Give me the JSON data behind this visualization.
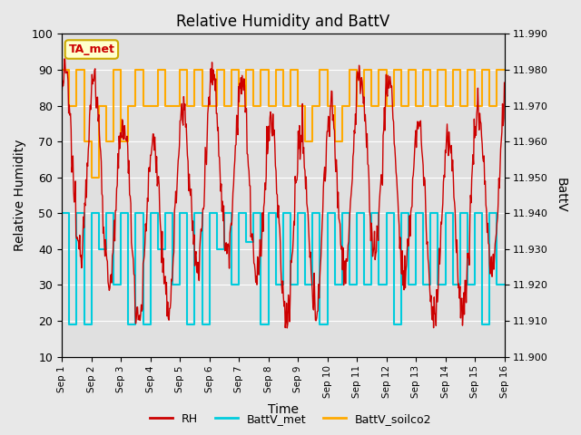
{
  "title": "Relative Humidity and BattV",
  "xlabel": "Time",
  "ylabel_left": "Relative Humidity",
  "ylabel_right": "BattV",
  "annotation_text": "TA_met",
  "annotation_color": "#cc0000",
  "annotation_bg": "#ffffcc",
  "annotation_border": "#ccaa00",
  "ylim_left": [
    10,
    100
  ],
  "ylim_right": [
    11.9,
    11.99
  ],
  "yticks_left": [
    10,
    20,
    30,
    40,
    50,
    60,
    70,
    80,
    90,
    100
  ],
  "yticks_right": [
    11.9,
    11.91,
    11.92,
    11.93,
    11.94,
    11.95,
    11.96,
    11.97,
    11.98,
    11.99
  ],
  "bg_color": "#e8e8e8",
  "plot_bg_color": "#e0e0e0",
  "grid_color": "#ffffff",
  "rh_color": "#cc0000",
  "battv_met_color": "#00ccdd",
  "battv_soilco2_color": "#ffaa00",
  "legend_rh_label": "RH",
  "legend_met_label": "BattV_met",
  "legend_soilco2_label": "BattV_soilco2",
  "rh_seed": 12345,
  "battv_met_levels": [
    50,
    19,
    50,
    19,
    50,
    40,
    50,
    30,
    50,
    19,
    50,
    19,
    50,
    40,
    50,
    30,
    50,
    19,
    50,
    19,
    50,
    40,
    50,
    30,
    50,
    42,
    50,
    19,
    50,
    30,
    50,
    30,
    50,
    30,
    50,
    19,
    50,
    30,
    50,
    30,
    50,
    30,
    50,
    30,
    50,
    19,
    50,
    30,
    50,
    30,
    50,
    30,
    50,
    30,
    50,
    30,
    50,
    19,
    50,
    30
  ],
  "battv_soilco2_levels": [
    90,
    80,
    90,
    70,
    60,
    80,
    70,
    90,
    70,
    80,
    90,
    80,
    80,
    90,
    80,
    80,
    90,
    80,
    90,
    80,
    80,
    90,
    80,
    90,
    80,
    90,
    80,
    90,
    80,
    90,
    80,
    90,
    80,
    70,
    80,
    90,
    80,
    70,
    80,
    90,
    80,
    90,
    80,
    90,
    80,
    90,
    80,
    90,
    80,
    90,
    80,
    90,
    80,
    90,
    80,
    90,
    80,
    90,
    80,
    90
  ]
}
